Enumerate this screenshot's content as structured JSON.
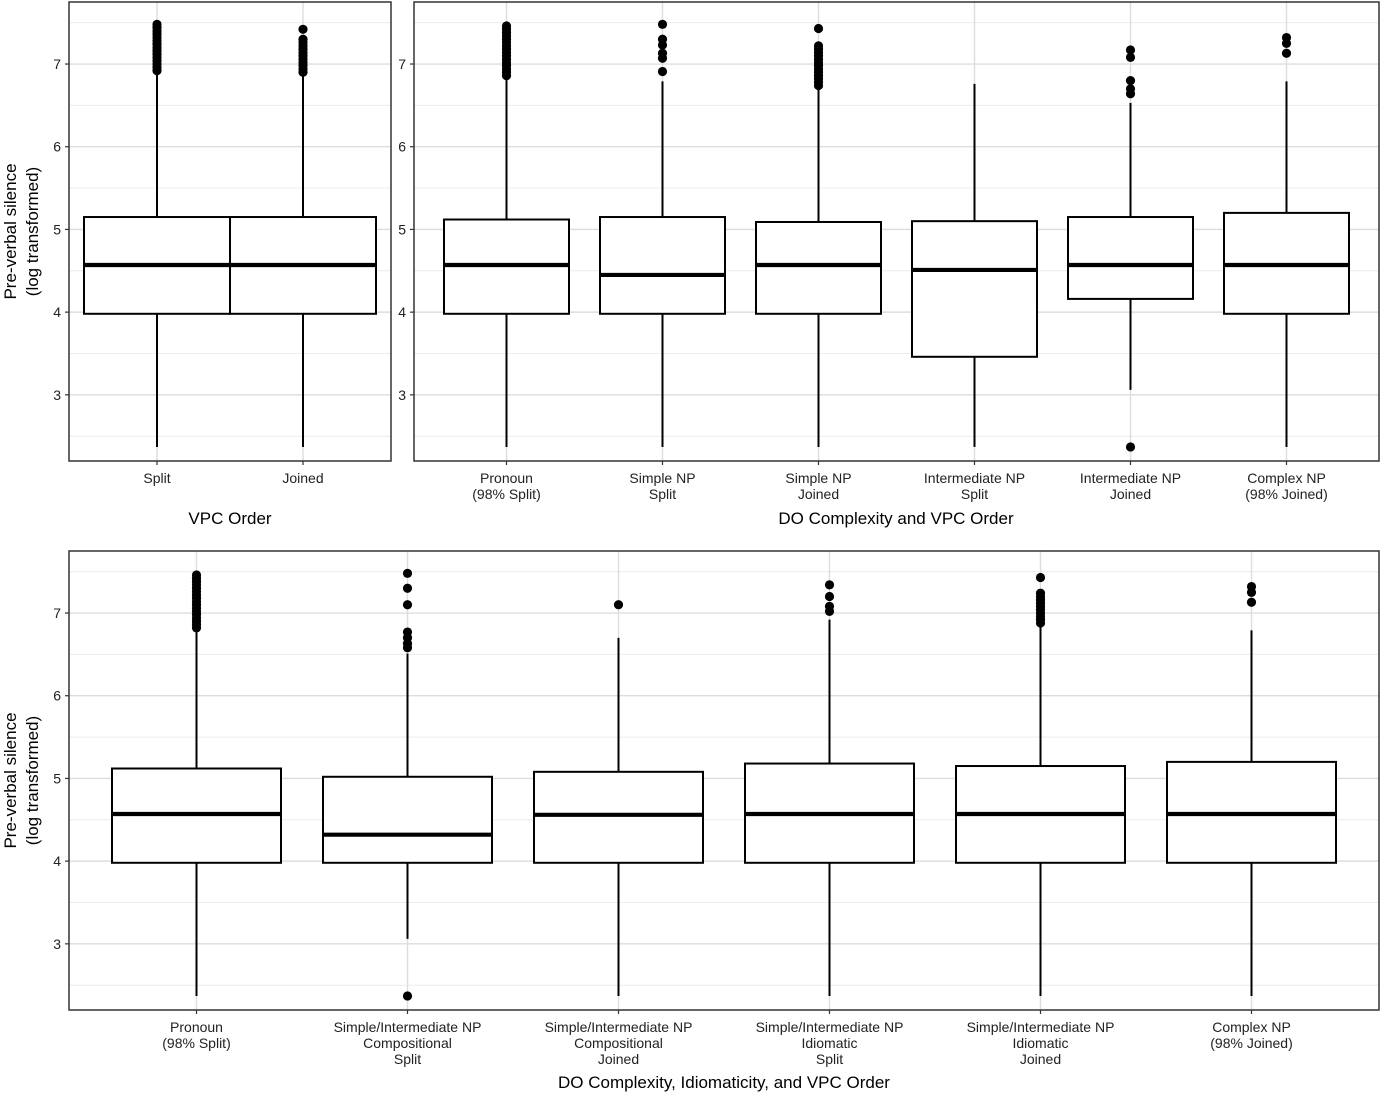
{
  "chart_data": [
    {
      "type": "box",
      "panel": "top-left",
      "xlabel": "VPC Order",
      "ylabel": [
        "Pre-verbal silence",
        "(log transformed)"
      ],
      "ylim": [
        2.2,
        7.75
      ],
      "yticks": [
        3,
        4,
        5,
        6,
        7
      ],
      "grid": true,
      "categories": [
        {
          "label": [
            "Split"
          ],
          "q1": 3.98,
          "median": 4.57,
          "q3": 5.15,
          "whisker_low": 2.37,
          "whisker_high": 6.9,
          "outliers": [
            6.92,
            6.96,
            7.0,
            7.04,
            7.08,
            7.12,
            7.16,
            7.2,
            7.24,
            7.28,
            7.32,
            7.36,
            7.4,
            7.44,
            7.48
          ]
        },
        {
          "label": [
            "Joined"
          ],
          "q1": 3.98,
          "median": 4.57,
          "q3": 5.15,
          "whisker_low": 2.37,
          "whisker_high": 6.88,
          "outliers": [
            6.9,
            6.94,
            6.98,
            7.02,
            7.06,
            7.1,
            7.14,
            7.18,
            7.22,
            7.26,
            7.3,
            7.42
          ]
        }
      ]
    },
    {
      "type": "box",
      "panel": "top-right",
      "xlabel": "DO Complexity and VPC Order",
      "ylabel": [],
      "ylim": [
        2.2,
        7.75
      ],
      "yticks": [
        3,
        4,
        5,
        6,
        7
      ],
      "grid": true,
      "categories": [
        {
          "label": [
            "Pronoun",
            "(98% Split)"
          ],
          "q1": 3.98,
          "median": 4.57,
          "q3": 5.12,
          "whisker_low": 2.37,
          "whisker_high": 6.84,
          "outliers": [
            6.86,
            6.9,
            6.94,
            6.98,
            7.02,
            7.06,
            7.1,
            7.14,
            7.18,
            7.22,
            7.26,
            7.3,
            7.34,
            7.38,
            7.42,
            7.46
          ]
        },
        {
          "label": [
            "Simple NP",
            "Split"
          ],
          "q1": 3.98,
          "median": 4.45,
          "q3": 5.15,
          "whisker_low": 2.37,
          "whisker_high": 6.79,
          "outliers": [
            6.91,
            7.07,
            7.13,
            7.23,
            7.3,
            7.48
          ]
        },
        {
          "label": [
            "Simple NP",
            "Joined"
          ],
          "q1": 3.98,
          "median": 4.57,
          "q3": 5.09,
          "whisker_low": 2.37,
          "whisker_high": 6.73,
          "outliers": [
            6.74,
            6.78,
            6.82,
            6.86,
            6.9,
            6.94,
            6.98,
            7.02,
            7.06,
            7.1,
            7.14,
            7.18,
            7.22,
            7.43
          ]
        },
        {
          "label": [
            "Intermediate NP",
            "Split"
          ],
          "q1": 3.46,
          "median": 4.51,
          "q3": 5.1,
          "whisker_low": 2.37,
          "whisker_high": 6.76,
          "outliers": []
        },
        {
          "label": [
            "Intermediate NP",
            "Joined"
          ],
          "q1": 4.16,
          "median": 4.57,
          "q3": 5.15,
          "whisker_low": 3.06,
          "whisker_high": 6.53,
          "outliers": [
            2.37,
            6.64,
            6.7,
            6.8,
            7.08,
            7.17
          ]
        },
        {
          "label": [
            "Complex NP",
            "(98% Joined)"
          ],
          "q1": 3.98,
          "median": 4.57,
          "q3": 5.2,
          "whisker_low": 2.37,
          "whisker_high": 6.79,
          "outliers": [
            7.13,
            7.25,
            7.32
          ]
        }
      ]
    },
    {
      "type": "box",
      "panel": "bottom",
      "xlabel": "DO Complexity, Idiomaticity, and VPC Order",
      "ylabel": [
        "Pre-verbal silence",
        "(log transformed)"
      ],
      "ylim": [
        2.2,
        7.75
      ],
      "yticks": [
        3,
        4,
        5,
        6,
        7
      ],
      "grid": true,
      "categories": [
        {
          "label": [
            "Pronoun",
            "(98% Split)"
          ],
          "q1": 3.98,
          "median": 4.57,
          "q3": 5.12,
          "whisker_low": 2.37,
          "whisker_high": 6.8,
          "outliers": [
            6.82,
            6.86,
            6.9,
            6.94,
            6.98,
            7.02,
            7.06,
            7.1,
            7.14,
            7.18,
            7.22,
            7.26,
            7.3,
            7.34,
            7.38,
            7.42,
            7.46
          ]
        },
        {
          "label": [
            "Simple/Intermediate NP",
            "Compositional",
            "Split"
          ],
          "q1": 3.98,
          "median": 4.32,
          "q3": 5.02,
          "whisker_low": 3.06,
          "whisker_high": 6.51,
          "outliers": [
            2.37,
            6.58,
            6.63,
            6.7,
            6.77,
            7.1,
            7.3,
            7.48
          ]
        },
        {
          "label": [
            "Simple/Intermediate NP",
            "Compositional",
            "Joined"
          ],
          "q1": 3.98,
          "median": 4.56,
          "q3": 5.08,
          "whisker_low": 2.37,
          "whisker_high": 6.7,
          "outliers": [
            7.1
          ]
        },
        {
          "label": [
            "Simple/Intermediate NP",
            "Idiomatic",
            "Split"
          ],
          "q1": 3.98,
          "median": 4.57,
          "q3": 5.18,
          "whisker_low": 2.37,
          "whisker_high": 6.92,
          "outliers": [
            7.02,
            7.08,
            7.2,
            7.34
          ]
        },
        {
          "label": [
            "Simple/Intermediate NP",
            "Idiomatic",
            "Joined"
          ],
          "q1": 3.98,
          "median": 4.57,
          "q3": 5.15,
          "whisker_low": 2.37,
          "whisker_high": 6.84,
          "outliers": [
            6.88,
            6.92,
            6.96,
            7.0,
            7.04,
            7.08,
            7.12,
            7.16,
            7.2,
            7.24,
            7.43
          ]
        },
        {
          "label": [
            "Complex NP",
            "(98% Joined)"
          ],
          "q1": 3.98,
          "median": 4.57,
          "q3": 5.2,
          "whisker_low": 2.37,
          "whisker_high": 6.79,
          "outliers": [
            7.13,
            7.25,
            7.32
          ]
        }
      ]
    }
  ]
}
